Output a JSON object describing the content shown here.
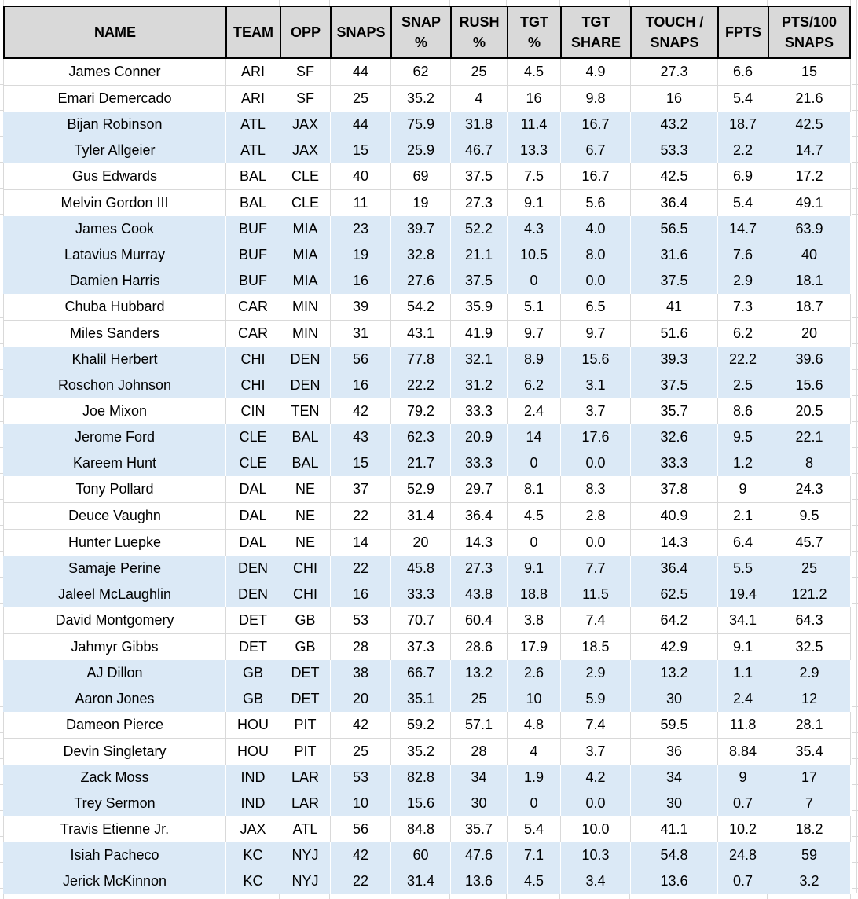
{
  "colors": {
    "header_bg": "#d9d9d9",
    "row_band": "#dbe9f6",
    "grid": "#d9d9d9",
    "border": "#000000"
  },
  "table": {
    "columns": [
      {
        "key": "name",
        "label": "NAME"
      },
      {
        "key": "team",
        "label": "TEAM"
      },
      {
        "key": "opp",
        "label": "OPP"
      },
      {
        "key": "snaps",
        "label": "SNAPS"
      },
      {
        "key": "snap_pct",
        "label": "SNAP\n%"
      },
      {
        "key": "rush_pct",
        "label": "RUSH\n%"
      },
      {
        "key": "tgt_pct",
        "label": "TGT\n%"
      },
      {
        "key": "tgt_share",
        "label": "TGT\nSHARE"
      },
      {
        "key": "touch_snaps",
        "label": "TOUCH /\nSNAPS"
      },
      {
        "key": "fpts",
        "label": "FPTS"
      },
      {
        "key": "pts100",
        "label": "PTS/100\nSNAPS"
      }
    ],
    "rows": [
      {
        "name": "James Conner",
        "team": "ARI",
        "opp": "SF",
        "snaps": "44",
        "snap_pct": "62",
        "rush_pct": "25",
        "tgt_pct": "4.5",
        "tgt_share": "4.9",
        "touch_snaps": "27.3",
        "fpts": "6.6",
        "pts100": "15"
      },
      {
        "name": "Emari Demercado",
        "team": "ARI",
        "opp": "SF",
        "snaps": "25",
        "snap_pct": "35.2",
        "rush_pct": "4",
        "tgt_pct": "16",
        "tgt_share": "9.8",
        "touch_snaps": "16",
        "fpts": "5.4",
        "pts100": "21.6"
      },
      {
        "name": "Bijan Robinson",
        "team": "ATL",
        "opp": "JAX",
        "snaps": "44",
        "snap_pct": "75.9",
        "rush_pct": "31.8",
        "tgt_pct": "11.4",
        "tgt_share": "16.7",
        "touch_snaps": "43.2",
        "fpts": "18.7",
        "pts100": "42.5"
      },
      {
        "name": "Tyler Allgeier",
        "team": "ATL",
        "opp": "JAX",
        "snaps": "15",
        "snap_pct": "25.9",
        "rush_pct": "46.7",
        "tgt_pct": "13.3",
        "tgt_share": "6.7",
        "touch_snaps": "53.3",
        "fpts": "2.2",
        "pts100": "14.7"
      },
      {
        "name": "Gus Edwards",
        "team": "BAL",
        "opp": "CLE",
        "snaps": "40",
        "snap_pct": "69",
        "rush_pct": "37.5",
        "tgt_pct": "7.5",
        "tgt_share": "16.7",
        "touch_snaps": "42.5",
        "fpts": "6.9",
        "pts100": "17.2"
      },
      {
        "name": "Melvin Gordon III",
        "team": "BAL",
        "opp": "CLE",
        "snaps": "11",
        "snap_pct": "19",
        "rush_pct": "27.3",
        "tgt_pct": "9.1",
        "tgt_share": "5.6",
        "touch_snaps": "36.4",
        "fpts": "5.4",
        "pts100": "49.1"
      },
      {
        "name": "James Cook",
        "team": "BUF",
        "opp": "MIA",
        "snaps": "23",
        "snap_pct": "39.7",
        "rush_pct": "52.2",
        "tgt_pct": "4.3",
        "tgt_share": "4.0",
        "touch_snaps": "56.5",
        "fpts": "14.7",
        "pts100": "63.9"
      },
      {
        "name": "Latavius Murray",
        "team": "BUF",
        "opp": "MIA",
        "snaps": "19",
        "snap_pct": "32.8",
        "rush_pct": "21.1",
        "tgt_pct": "10.5",
        "tgt_share": "8.0",
        "touch_snaps": "31.6",
        "fpts": "7.6",
        "pts100": "40"
      },
      {
        "name": "Damien Harris",
        "team": "BUF",
        "opp": "MIA",
        "snaps": "16",
        "snap_pct": "27.6",
        "rush_pct": "37.5",
        "tgt_pct": "0",
        "tgt_share": "0.0",
        "touch_snaps": "37.5",
        "fpts": "2.9",
        "pts100": "18.1"
      },
      {
        "name": "Chuba Hubbard",
        "team": "CAR",
        "opp": "MIN",
        "snaps": "39",
        "snap_pct": "54.2",
        "rush_pct": "35.9",
        "tgt_pct": "5.1",
        "tgt_share": "6.5",
        "touch_snaps": "41",
        "fpts": "7.3",
        "pts100": "18.7"
      },
      {
        "name": "Miles Sanders",
        "team": "CAR",
        "opp": "MIN",
        "snaps": "31",
        "snap_pct": "43.1",
        "rush_pct": "41.9",
        "tgt_pct": "9.7",
        "tgt_share": "9.7",
        "touch_snaps": "51.6",
        "fpts": "6.2",
        "pts100": "20"
      },
      {
        "name": "Khalil Herbert",
        "team": "CHI",
        "opp": "DEN",
        "snaps": "56",
        "snap_pct": "77.8",
        "rush_pct": "32.1",
        "tgt_pct": "8.9",
        "tgt_share": "15.6",
        "touch_snaps": "39.3",
        "fpts": "22.2",
        "pts100": "39.6"
      },
      {
        "name": "Roschon Johnson",
        "team": "CHI",
        "opp": "DEN",
        "snaps": "16",
        "snap_pct": "22.2",
        "rush_pct": "31.2",
        "tgt_pct": "6.2",
        "tgt_share": "3.1",
        "touch_snaps": "37.5",
        "fpts": "2.5",
        "pts100": "15.6"
      },
      {
        "name": "Joe Mixon",
        "team": "CIN",
        "opp": "TEN",
        "snaps": "42",
        "snap_pct": "79.2",
        "rush_pct": "33.3",
        "tgt_pct": "2.4",
        "tgt_share": "3.7",
        "touch_snaps": "35.7",
        "fpts": "8.6",
        "pts100": "20.5"
      },
      {
        "name": "Jerome Ford",
        "team": "CLE",
        "opp": "BAL",
        "snaps": "43",
        "snap_pct": "62.3",
        "rush_pct": "20.9",
        "tgt_pct": "14",
        "tgt_share": "17.6",
        "touch_snaps": "32.6",
        "fpts": "9.5",
        "pts100": "22.1"
      },
      {
        "name": "Kareem Hunt",
        "team": "CLE",
        "opp": "BAL",
        "snaps": "15",
        "snap_pct": "21.7",
        "rush_pct": "33.3",
        "tgt_pct": "0",
        "tgt_share": "0.0",
        "touch_snaps": "33.3",
        "fpts": "1.2",
        "pts100": "8"
      },
      {
        "name": "Tony Pollard",
        "team": "DAL",
        "opp": "NE",
        "snaps": "37",
        "snap_pct": "52.9",
        "rush_pct": "29.7",
        "tgt_pct": "8.1",
        "tgt_share": "8.3",
        "touch_snaps": "37.8",
        "fpts": "9",
        "pts100": "24.3"
      },
      {
        "name": "Deuce Vaughn",
        "team": "DAL",
        "opp": "NE",
        "snaps": "22",
        "snap_pct": "31.4",
        "rush_pct": "36.4",
        "tgt_pct": "4.5",
        "tgt_share": "2.8",
        "touch_snaps": "40.9",
        "fpts": "2.1",
        "pts100": "9.5"
      },
      {
        "name": "Hunter Luepke",
        "team": "DAL",
        "opp": "NE",
        "snaps": "14",
        "snap_pct": "20",
        "rush_pct": "14.3",
        "tgt_pct": "0",
        "tgt_share": "0.0",
        "touch_snaps": "14.3",
        "fpts": "6.4",
        "pts100": "45.7"
      },
      {
        "name": "Samaje Perine",
        "team": "DEN",
        "opp": "CHI",
        "snaps": "22",
        "snap_pct": "45.8",
        "rush_pct": "27.3",
        "tgt_pct": "9.1",
        "tgt_share": "7.7",
        "touch_snaps": "36.4",
        "fpts": "5.5",
        "pts100": "25"
      },
      {
        "name": "Jaleel McLaughlin",
        "team": "DEN",
        "opp": "CHI",
        "snaps": "16",
        "snap_pct": "33.3",
        "rush_pct": "43.8",
        "tgt_pct": "18.8",
        "tgt_share": "11.5",
        "touch_snaps": "62.5",
        "fpts": "19.4",
        "pts100": "121.2"
      },
      {
        "name": "David Montgomery",
        "team": "DET",
        "opp": "GB",
        "snaps": "53",
        "snap_pct": "70.7",
        "rush_pct": "60.4",
        "tgt_pct": "3.8",
        "tgt_share": "7.4",
        "touch_snaps": "64.2",
        "fpts": "34.1",
        "pts100": "64.3"
      },
      {
        "name": "Jahmyr Gibbs",
        "team": "DET",
        "opp": "GB",
        "snaps": "28",
        "snap_pct": "37.3",
        "rush_pct": "28.6",
        "tgt_pct": "17.9",
        "tgt_share": "18.5",
        "touch_snaps": "42.9",
        "fpts": "9.1",
        "pts100": "32.5"
      },
      {
        "name": "AJ Dillon",
        "team": "GB",
        "opp": "DET",
        "snaps": "38",
        "snap_pct": "66.7",
        "rush_pct": "13.2",
        "tgt_pct": "2.6",
        "tgt_share": "2.9",
        "touch_snaps": "13.2",
        "fpts": "1.1",
        "pts100": "2.9"
      },
      {
        "name": "Aaron Jones",
        "team": "GB",
        "opp": "DET",
        "snaps": "20",
        "snap_pct": "35.1",
        "rush_pct": "25",
        "tgt_pct": "10",
        "tgt_share": "5.9",
        "touch_snaps": "30",
        "fpts": "2.4",
        "pts100": "12"
      },
      {
        "name": "Dameon Pierce",
        "team": "HOU",
        "opp": "PIT",
        "snaps": "42",
        "snap_pct": "59.2",
        "rush_pct": "57.1",
        "tgt_pct": "4.8",
        "tgt_share": "7.4",
        "touch_snaps": "59.5",
        "fpts": "11.8",
        "pts100": "28.1"
      },
      {
        "name": "Devin Singletary",
        "team": "HOU",
        "opp": "PIT",
        "snaps": "25",
        "snap_pct": "35.2",
        "rush_pct": "28",
        "tgt_pct": "4",
        "tgt_share": "3.7",
        "touch_snaps": "36",
        "fpts": "8.84",
        "pts100": "35.4"
      },
      {
        "name": "Zack Moss",
        "team": "IND",
        "opp": "LAR",
        "snaps": "53",
        "snap_pct": "82.8",
        "rush_pct": "34",
        "tgt_pct": "1.9",
        "tgt_share": "4.2",
        "touch_snaps": "34",
        "fpts": "9",
        "pts100": "17"
      },
      {
        "name": "Trey Sermon",
        "team": "IND",
        "opp": "LAR",
        "snaps": "10",
        "snap_pct": "15.6",
        "rush_pct": "30",
        "tgt_pct": "0",
        "tgt_share": "0.0",
        "touch_snaps": "30",
        "fpts": "0.7",
        "pts100": "7"
      },
      {
        "name": "Travis Etienne Jr.",
        "team": "JAX",
        "opp": "ATL",
        "snaps": "56",
        "snap_pct": "84.8",
        "rush_pct": "35.7",
        "tgt_pct": "5.4",
        "tgt_share": "10.0",
        "touch_snaps": "41.1",
        "fpts": "10.2",
        "pts100": "18.2"
      },
      {
        "name": "Isiah Pacheco",
        "team": "KC",
        "opp": "NYJ",
        "snaps": "42",
        "snap_pct": "60",
        "rush_pct": "47.6",
        "tgt_pct": "7.1",
        "tgt_share": "10.3",
        "touch_snaps": "54.8",
        "fpts": "24.8",
        "pts100": "59"
      },
      {
        "name": "Jerick McKinnon",
        "team": "KC",
        "opp": "NYJ",
        "snaps": "22",
        "snap_pct": "31.4",
        "rush_pct": "13.6",
        "tgt_pct": "4.5",
        "tgt_share": "3.4",
        "touch_snaps": "13.6",
        "fpts": "0.7",
        "pts100": "3.2"
      }
    ]
  }
}
